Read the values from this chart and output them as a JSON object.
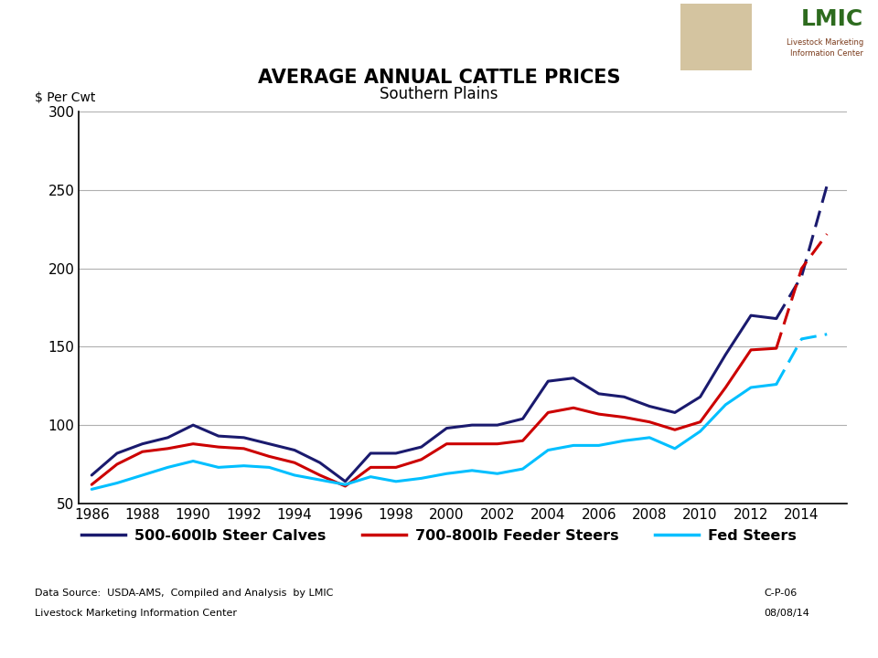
{
  "title1": "AVERAGE ANNUAL CATTLE PRICES",
  "title2": "Southern Plains",
  "ylabel": "$ Per Cwt",
  "header_color": "#4a6741",
  "header_brown": "#7a4a2a",
  "background_color": "#ffffff",
  "ylim": [
    50,
    300
  ],
  "yticks": [
    50,
    100,
    150,
    200,
    250,
    300
  ],
  "years": [
    1986,
    1987,
    1988,
    1989,
    1990,
    1991,
    1992,
    1993,
    1994,
    1995,
    1996,
    1997,
    1998,
    1999,
    2000,
    2001,
    2002,
    2003,
    2004,
    2005,
    2006,
    2007,
    2008,
    2009,
    2010,
    2011,
    2012,
    2013,
    2014,
    2015
  ],
  "steer_calves": [
    68,
    82,
    88,
    92,
    100,
    93,
    92,
    88,
    84,
    76,
    64,
    82,
    82,
    86,
    98,
    100,
    100,
    104,
    128,
    130,
    120,
    118,
    112,
    108,
    118,
    145,
    170,
    168,
    195,
    253
  ],
  "feeder_steers": [
    62,
    75,
    83,
    85,
    88,
    86,
    85,
    80,
    76,
    68,
    61,
    73,
    73,
    78,
    88,
    88,
    88,
    90,
    108,
    111,
    107,
    105,
    102,
    97,
    102,
    124,
    148,
    149,
    200,
    222
  ],
  "fed_steers": [
    59,
    63,
    68,
    73,
    77,
    73,
    74,
    73,
    68,
    65,
    62,
    67,
    64,
    66,
    69,
    71,
    69,
    72,
    84,
    87,
    87,
    90,
    92,
    85,
    96,
    113,
    124,
    126,
    155,
    158
  ],
  "color_calves": "#1a1a6e",
  "color_feeders": "#cc0000",
  "color_fed": "#00bfff",
  "source_text1": "Data Source:  USDA-AMS,  Compiled and Analysis  by LMIC",
  "source_text2": "Livestock Marketing Information Center",
  "ref_text1": "C-P-06",
  "ref_text2": "08/08/14",
  "legend_labels": [
    "500-600lb Steer Calves",
    "700-800lb Feeder Steers",
    "Fed Steers"
  ],
  "legend_colors": [
    "#1a1a6e",
    "#cc0000",
    "#00bfff"
  ],
  "solid_end_idx": 27,
  "xlim": [
    1985.5,
    2015.8
  ],
  "xtick_start": 1986,
  "xtick_end": 2015,
  "xtick_step": 2
}
